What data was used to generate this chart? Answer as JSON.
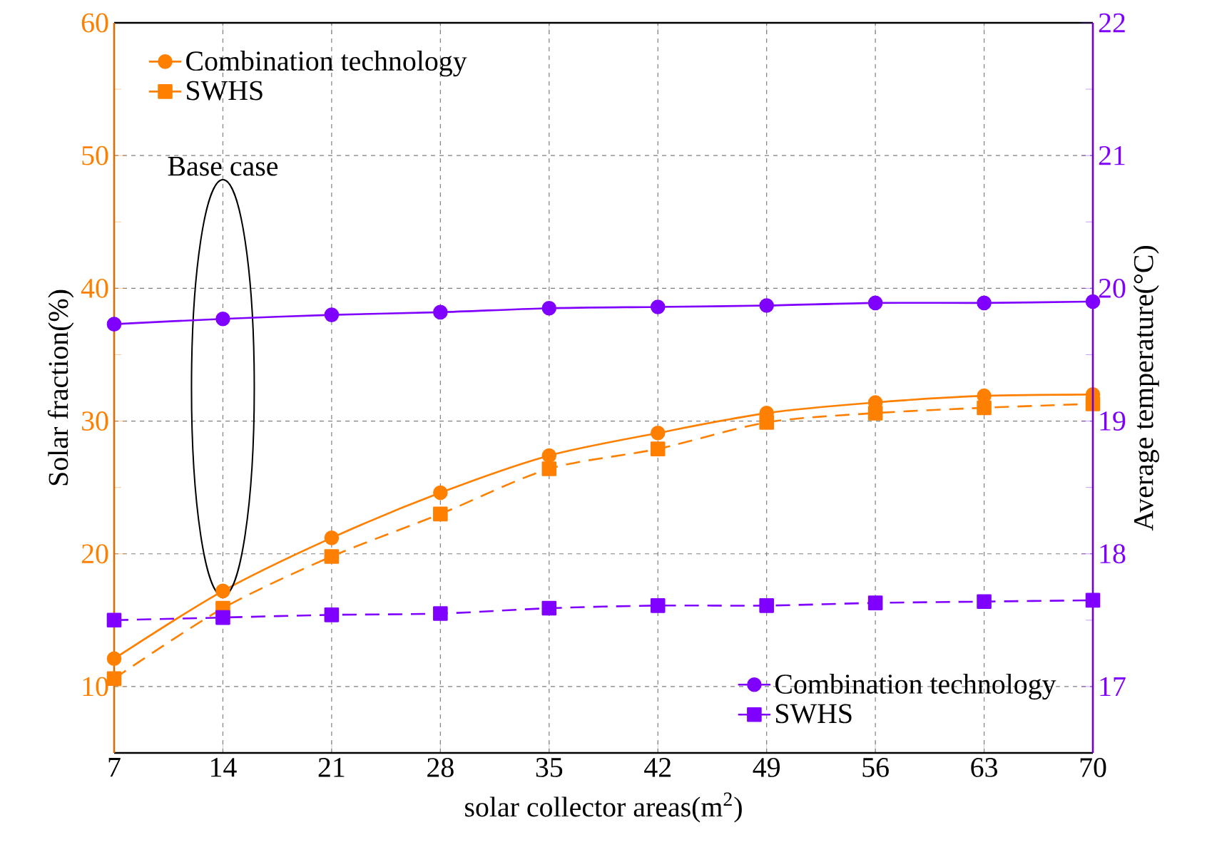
{
  "chart_data": {
    "type": "line",
    "xlabel": "solar collector areas(m$^{2}$)",
    "ylabel": "Solar fraction(%)",
    "y2label": "Average temperature(°C)",
    "x": [
      7,
      14,
      21,
      28,
      35,
      42,
      49,
      56,
      63,
      70
    ],
    "series": [
      {
        "name": "Combination technology",
        "color": "#ff8000",
        "marker": "circle",
        "line_style": "solid",
        "values": [
          12.1,
          17.2,
          21.2,
          24.6,
          27.4,
          29.1,
          30.6,
          31.4,
          31.9,
          32.0
        ]
      },
      {
        "name": "SWHS",
        "color": "#ff8000",
        "marker": "square",
        "line_style": "dashed",
        "values": [
          10.6,
          15.9,
          19.8,
          23.0,
          26.4,
          27.9,
          29.9,
          30.6,
          31.0,
          31.3
        ]
      },
      {
        "name": "Combination technology",
        "color": "#8000ff",
        "marker": "circle",
        "line_style": "solid",
        "axis": "y2",
        "values": [
          19.73,
          19.77,
          19.8,
          19.82,
          19.85,
          19.86,
          19.87,
          19.89,
          19.89,
          19.9
        ]
      },
      {
        "name": "SWHS",
        "color": "#8000ff",
        "marker": "square",
        "line_style": "dashed",
        "axis": "y2",
        "values": [
          17.5,
          17.52,
          17.54,
          17.55,
          17.59,
          17.61,
          17.61,
          17.63,
          17.64,
          17.65
        ]
      }
    ],
    "xlim": [
      7,
      70
    ],
    "xticks": [
      7,
      14,
      21,
      28,
      35,
      42,
      49,
      56,
      63,
      70
    ],
    "ylim": [
      5,
      60
    ],
    "yticks": [
      10,
      20,
      30,
      40,
      50,
      60
    ],
    "y2lim": [
      16.5,
      22
    ],
    "y2ticks": [
      17,
      18,
      19,
      20,
      21,
      22
    ],
    "grid": true,
    "legend": "top left",
    "annotations": [
      "Base case"
    ]
  }
}
